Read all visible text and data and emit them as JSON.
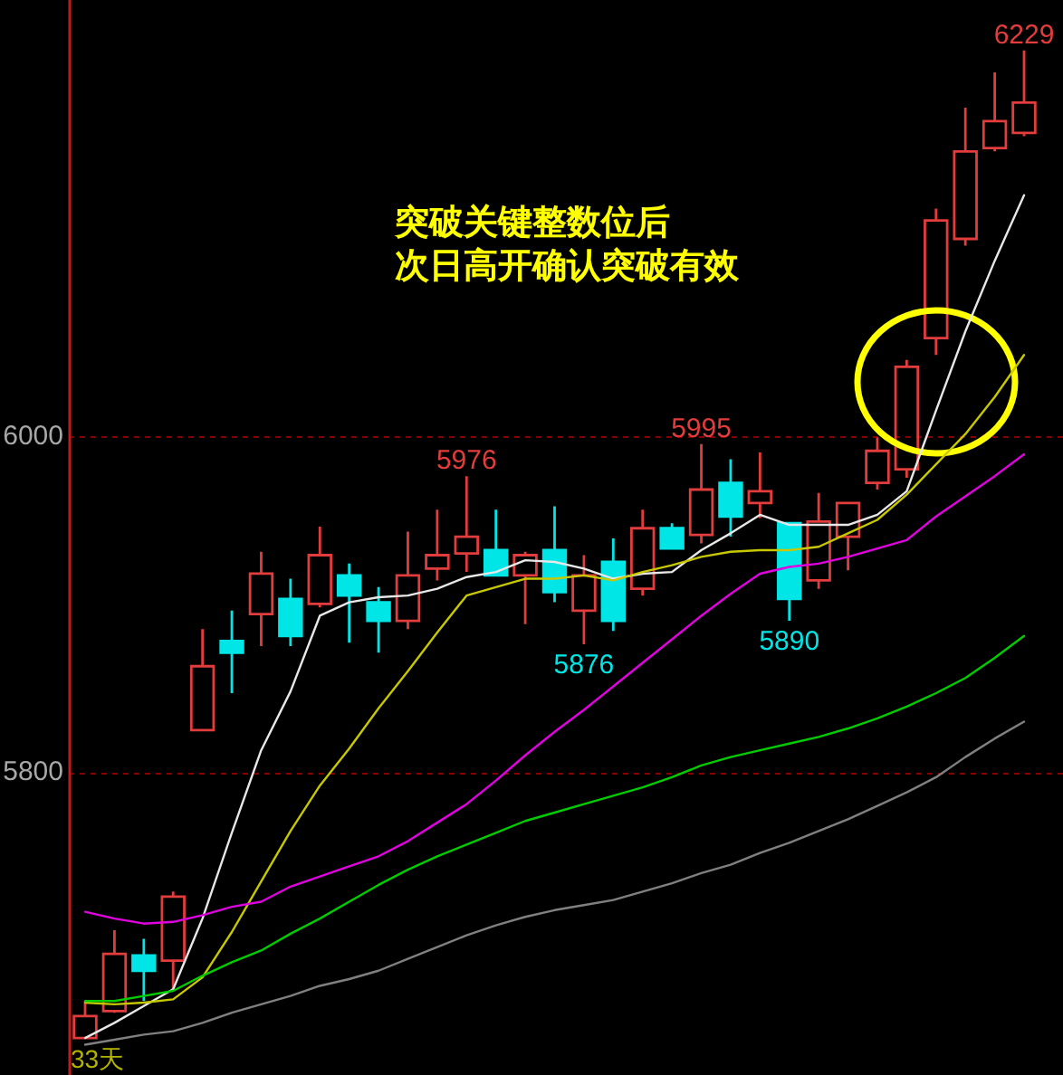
{
  "chart_data": {
    "type": "candlestick",
    "categories": [
      null,
      null,
      null,
      null,
      null,
      null,
      null,
      null,
      null,
      null,
      null,
      null,
      null,
      null,
      null,
      null,
      null,
      null,
      null,
      null,
      null,
      null,
      null,
      null,
      null,
      null,
      null,
      null,
      null,
      null,
      null,
      null,
      null
    ],
    "ohlc": [
      [
        5642,
        5664,
        5642,
        5655
      ],
      [
        5658,
        5706,
        5657,
        5692
      ],
      [
        5691,
        5701,
        5664,
        5682
      ],
      [
        5688,
        5729,
        5671,
        5726
      ],
      [
        5825,
        5885,
        5825,
        5863
      ],
      [
        5878,
        5896,
        5847,
        5871
      ],
      [
        5894,
        5931,
        5875,
        5918
      ],
      [
        5903,
        5915,
        5875,
        5881
      ],
      [
        5900,
        5946,
        5898,
        5929
      ],
      [
        5917,
        5924,
        5877,
        5905
      ],
      [
        5901,
        5910,
        5871,
        5890
      ],
      [
        5890,
        5943,
        5885,
        5917
      ],
      [
        5921,
        5956,
        5914,
        5929
      ],
      [
        5930,
        5976,
        5919,
        5940
      ],
      [
        5932,
        5956,
        5917,
        5917
      ],
      [
        5917,
        5931,
        5888,
        5929
      ],
      [
        5932,
        5958,
        5901,
        5907
      ],
      [
        5896,
        5929,
        5876,
        5917
      ],
      [
        5925,
        5939,
        5884,
        5890
      ],
      [
        5909,
        5956,
        5905,
        5945
      ],
      [
        5945,
        5948,
        5933,
        5933
      ],
      [
        5941,
        5995,
        5936,
        5968
      ],
      [
        5972,
        5986,
        5940,
        5952
      ],
      [
        5960,
        5990,
        5951,
        5967
      ],
      [
        5948,
        5948,
        5890,
        5903
      ],
      [
        5914,
        5966,
        5909,
        5949
      ],
      [
        5940,
        5960,
        5920,
        5960
      ],
      [
        5972,
        5999,
        5968,
        5991
      ],
      [
        5980,
        6045,
        5975,
        6041
      ],
      [
        6058,
        6135,
        6048,
        6128
      ],
      [
        6117,
        6195,
        6113,
        6169
      ],
      [
        6171,
        6216,
        6169,
        6187
      ],
      [
        6180,
        6229,
        6178,
        6198
      ]
    ],
    "colors": [
      "#e23c3c",
      "#e23c3c",
      "#00e5e5",
      "#e23c3c",
      "#e23c3c",
      "#00e5e5",
      "#e23c3c",
      "#00e5e5",
      "#e23c3c",
      "#00e5e5",
      "#00e5e5",
      "#e23c3c",
      "#e23c3c",
      "#e23c3c",
      "#00e5e5",
      "#e23c3c",
      "#00e5e5",
      "#e23c3c",
      "#00e5e5",
      "#e23c3c",
      "#00e5e5",
      "#e23c3c",
      "#00e5e5",
      "#e23c3c",
      "#00e5e5",
      "#e23c3c",
      "#e23c3c",
      "#e23c3c",
      "#e23c3c",
      "#e23c3c",
      "#e23c3c",
      "#e23c3c",
      "#e23c3c"
    ],
    "series": [
      {
        "type": "line",
        "color": "#e8e8e8",
        "values": [
          5642,
          5651,
          5661,
          5671,
          5713,
          5764,
          5813,
          5848,
          5893,
          5901,
          5904,
          5905,
          5909,
          5916,
          5919,
          5926,
          5925,
          5921,
          5915,
          5918,
          5919,
          5932,
          5942,
          5953,
          5947,
          5947,
          5947,
          5953,
          5967,
          6015,
          6062,
          6104,
          6143
        ]
      },
      {
        "type": "line",
        "color": "#c8c800",
        "values": [
          5663,
          5662,
          5663,
          5665,
          5678,
          5705,
          5735,
          5765,
          5792,
          5814,
          5838,
          5860,
          5883,
          5905,
          5910,
          5915,
          5915,
          5917,
          5914,
          5919,
          5923,
          5928,
          5931,
          5932,
          5932,
          5934,
          5942,
          5950,
          5965,
          5983,
          6001,
          6023,
          6048
        ]
      },
      {
        "type": "line",
        "color": "#e000e0",
        "values": [
          5717,
          5713,
          5710,
          5711,
          5715,
          5720,
          5723,
          5732,
          5738,
          5744,
          5750,
          5759,
          5770,
          5781,
          5795,
          5810,
          5824,
          5837,
          5851,
          5865,
          5879,
          5893,
          5906,
          5918,
          5922,
          5924,
          5928,
          5933,
          5938,
          5952,
          5964,
          5976,
          5989
        ]
      },
      {
        "type": "line",
        "color": "#00cc00",
        "values": [
          5664,
          5664,
          5667,
          5670,
          5679,
          5687,
          5694,
          5704,
          5713,
          5723,
          5733,
          5742,
          5750,
          5757,
          5764,
          5771,
          5776,
          5781,
          5786,
          5791,
          5797,
          5804,
          5809,
          5813,
          5817,
          5821,
          5826,
          5832,
          5839,
          5847,
          5856,
          5868,
          5881
        ]
      },
      {
        "type": "line",
        "color": "#808080",
        "values": [
          5638,
          5641,
          5644,
          5646,
          5651,
          5657,
          5662,
          5667,
          5673,
          5677,
          5682,
          5689,
          5696,
          5703,
          5709,
          5714,
          5718,
          5721,
          5724,
          5729,
          5734,
          5740,
          5745,
          5752,
          5758,
          5765,
          5772,
          5780,
          5788,
          5797,
          5809,
          5820,
          5830
        ]
      }
    ],
    "ylim": [
      5620,
      6259
    ],
    "yticks": [
      5800,
      6000
    ],
    "grid": "y",
    "annotations": [
      {
        "text": "6229",
        "y": 6229
      },
      {
        "text": "5976",
        "y": 5976
      },
      {
        "text": "5995",
        "y": 5995
      },
      {
        "text": "5876",
        "y": 5876
      },
      {
        "text": "5890",
        "y": 5890
      },
      "突破关键整数位后",
      "次日高开确认突破有效",
      "33天"
    ]
  }
}
